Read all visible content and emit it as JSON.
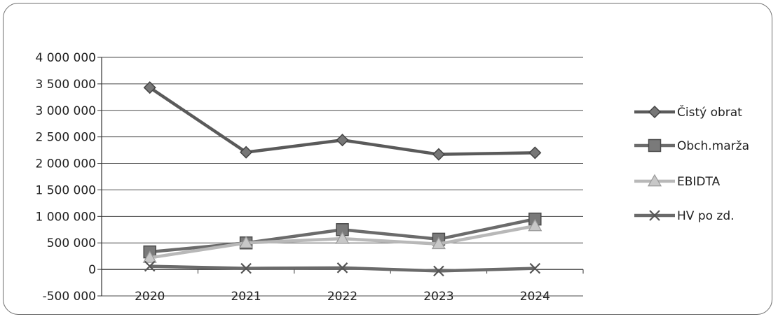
{
  "chart_data": {
    "type": "line",
    "title": "",
    "xlabel": "",
    "ylabel": "",
    "categories": [
      "2020",
      "2021",
      "2022",
      "2023",
      "2024"
    ],
    "ylim": [
      -500000,
      4000000
    ],
    "y_ticks": [
      4000000,
      3500000,
      3000000,
      2500000,
      2000000,
      1500000,
      1000000,
      500000,
      0,
      -500000
    ],
    "y_tick_labels": [
      "4 000 000",
      "3 500 000",
      "3 000 000",
      "2 500 000",
      "2 000 000",
      "1 500 000",
      "1 000 000",
      "500 000",
      "0",
      "-500 000"
    ],
    "grid": true,
    "legend_position": "right",
    "series": [
      {
        "name": "Čistý obrat",
        "values": [
          3430000,
          2210000,
          2440000,
          2170000,
          2200000
        ],
        "color": "#5a5a5a",
        "marker": "diamond"
      },
      {
        "name": "Obch.marža",
        "values": [
          330000,
          500000,
          750000,
          570000,
          950000
        ],
        "color": "#6b6b6b",
        "marker": "square"
      },
      {
        "name": "EBIDTA",
        "values": [
          220000,
          500000,
          580000,
          480000,
          820000
        ],
        "color": "#b8b8b8",
        "marker": "triangle"
      },
      {
        "name": "HV po zd.",
        "values": [
          60000,
          20000,
          30000,
          -30000,
          20000
        ],
        "color": "#6a6a6a",
        "marker": "x"
      }
    ]
  }
}
